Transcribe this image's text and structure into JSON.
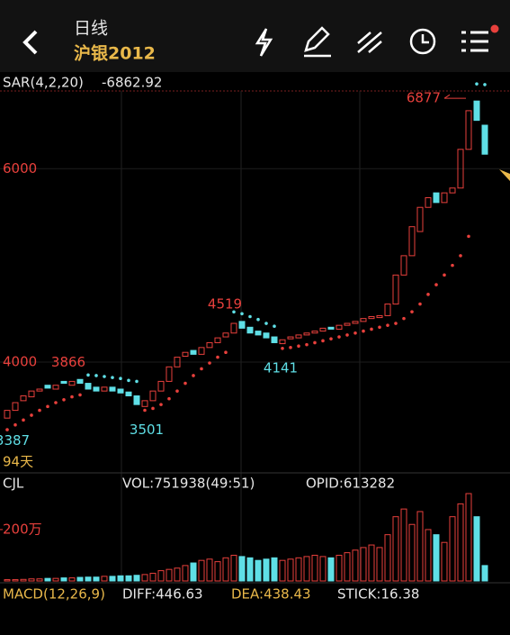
{
  "header": {
    "title": "日线",
    "symbol": "沪银2012"
  },
  "chart_data": [
    {
      "type": "candlestick",
      "indicator": "SAR(4,2,20)",
      "indicator_value": "-6862.92",
      "open": [
        3420,
        3500,
        3600,
        3640,
        3700,
        3760,
        3720,
        3800,
        3760,
        3820,
        3780,
        3740,
        3700,
        3740,
        3720,
        3690,
        3650,
        3540,
        3600,
        3700,
        3800,
        3950,
        4060,
        4120,
        4080,
        4150,
        4200,
        4260,
        4300,
        4420,
        4360,
        4320,
        4300,
        4260,
        4190,
        4240,
        4250,
        4280,
        4300,
        4320,
        4360,
        4340,
        4380,
        4400,
        4420,
        4450,
        4460,
        4480,
        4600,
        4900,
        5100,
        5350,
        5600,
        5750,
        5650,
        5750,
        5800,
        6200,
        6700,
        6450
      ],
      "close": [
        3500,
        3580,
        3650,
        3700,
        3720,
        3730,
        3760,
        3780,
        3800,
        3780,
        3720,
        3700,
        3740,
        3700,
        3680,
        3650,
        3560,
        3600,
        3700,
        3800,
        3950,
        4050,
        4100,
        4080,
        4150,
        4200,
        4250,
        4300,
        4400,
        4350,
        4300,
        4280,
        4250,
        4200,
        4230,
        4260,
        4280,
        4300,
        4320,
        4350,
        4340,
        4380,
        4400,
        4420,
        4450,
        4470,
        4480,
        4600,
        4900,
        5100,
        5400,
        5600,
        5700,
        5650,
        5750,
        5800,
        6200,
        6600,
        6500,
        6150
      ],
      "sar": [
        3300,
        3350,
        3400,
        3450,
        3500,
        3540,
        3580,
        3610,
        3640,
        3660,
        3866,
        3860,
        3850,
        3840,
        3830,
        3810,
        3800,
        3501,
        3520,
        3560,
        3620,
        3700,
        3780,
        3860,
        3930,
        3990,
        4050,
        4100,
        4519,
        4500,
        4470,
        4440,
        4400,
        4370,
        4141,
        4150,
        4165,
        4180,
        4200,
        4220,
        4240,
        4260,
        4280,
        4300,
        4320,
        4340,
        4360,
        4380,
        4400,
        4450,
        4520,
        4600,
        4700,
        4800,
        4900,
        5000,
        5100,
        5300,
        6877,
        6870
      ],
      "ylim": [
        2900,
        6860
      ],
      "yticks": [
        4000,
        6000
      ],
      "up_color": "#e8403c",
      "down_color": "#5fdfe6",
      "annotations": [
        6877,
        4519,
        3866,
        3501,
        4141,
        3387
      ],
      "footnote": "94天"
    },
    {
      "type": "bar",
      "label": "CJL",
      "vol": "VOL:751938(49:51)",
      "opid": "OPID:613282",
      "values": [
        5,
        5,
        6,
        8,
        8,
        10,
        10,
        12,
        12,
        14,
        15,
        15,
        18,
        18,
        20,
        20,
        22,
        25,
        30,
        40,
        45,
        50,
        60,
        70,
        80,
        85,
        75,
        90,
        100,
        95,
        90,
        80,
        85,
        90,
        80,
        85,
        90,
        95,
        100,
        95,
        90,
        100,
        110,
        120,
        130,
        140,
        130,
        180,
        250,
        280,
        220,
        270,
        200,
        180,
        150,
        250,
        300,
        340,
        250,
        60
      ],
      "ylim": [
        0,
        340
      ],
      "yticks": [
        {
          "value": 200,
          "label": "200万"
        }
      ]
    }
  ],
  "macd": {
    "label": "MACD(12,26,9)",
    "diff": "DIFF:446.63",
    "dea": "DEA:438.43",
    "stick": "STICK:16.38"
  }
}
